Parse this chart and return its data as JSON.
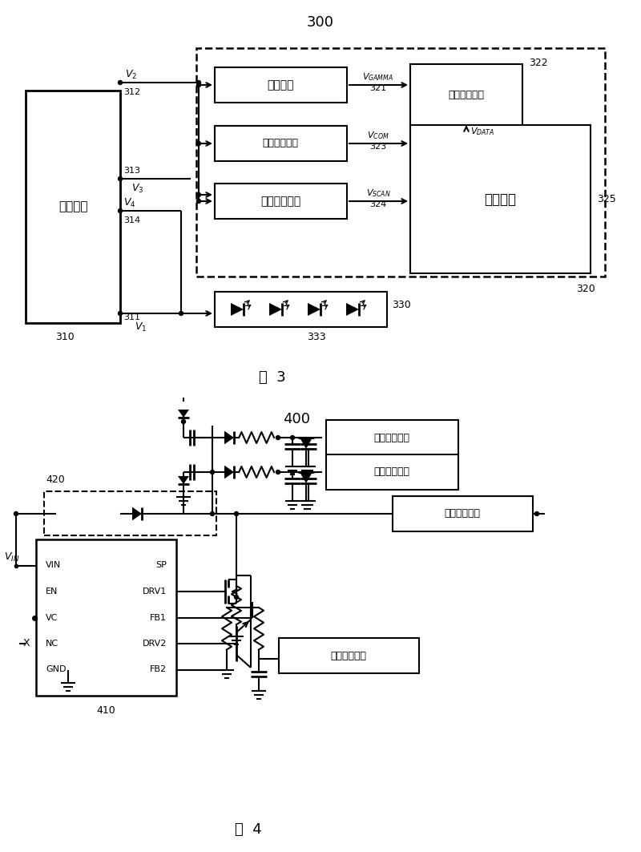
{
  "fig3_num": "300",
  "fig3_cap": "图  3",
  "fig4_num": "400",
  "fig4_cap": "图  4",
  "power_label": "电源电路",
  "id_310": "310",
  "gamma_label": "加马电路",
  "id_321": "321",
  "data_drv_label": "数据驱动电路",
  "id_322": "322",
  "common_v_label": "公共电压电路",
  "id_323": "323",
  "scan_drv_label": "扫描驱动电路",
  "id_324": "324",
  "lcd_panel_label": "液晶面板",
  "id_325": "325",
  "id_320": "320",
  "bl_id": "330",
  "bl_sub": "333",
  "id_410": "410",
  "id_420": "420",
  "load1": "第一负载电路",
  "load2": "第二负载电路",
  "load3": "第三负载电路",
  "load4": "第四负载电路",
  "ic_pins_l": [
    "VIN",
    "EN",
    "VC",
    "NC",
    "GND"
  ],
  "ic_pins_r": [
    "SP",
    "DRV1",
    "FB1",
    "DRV2",
    "FB2"
  ],
  "bg": "#ffffff"
}
